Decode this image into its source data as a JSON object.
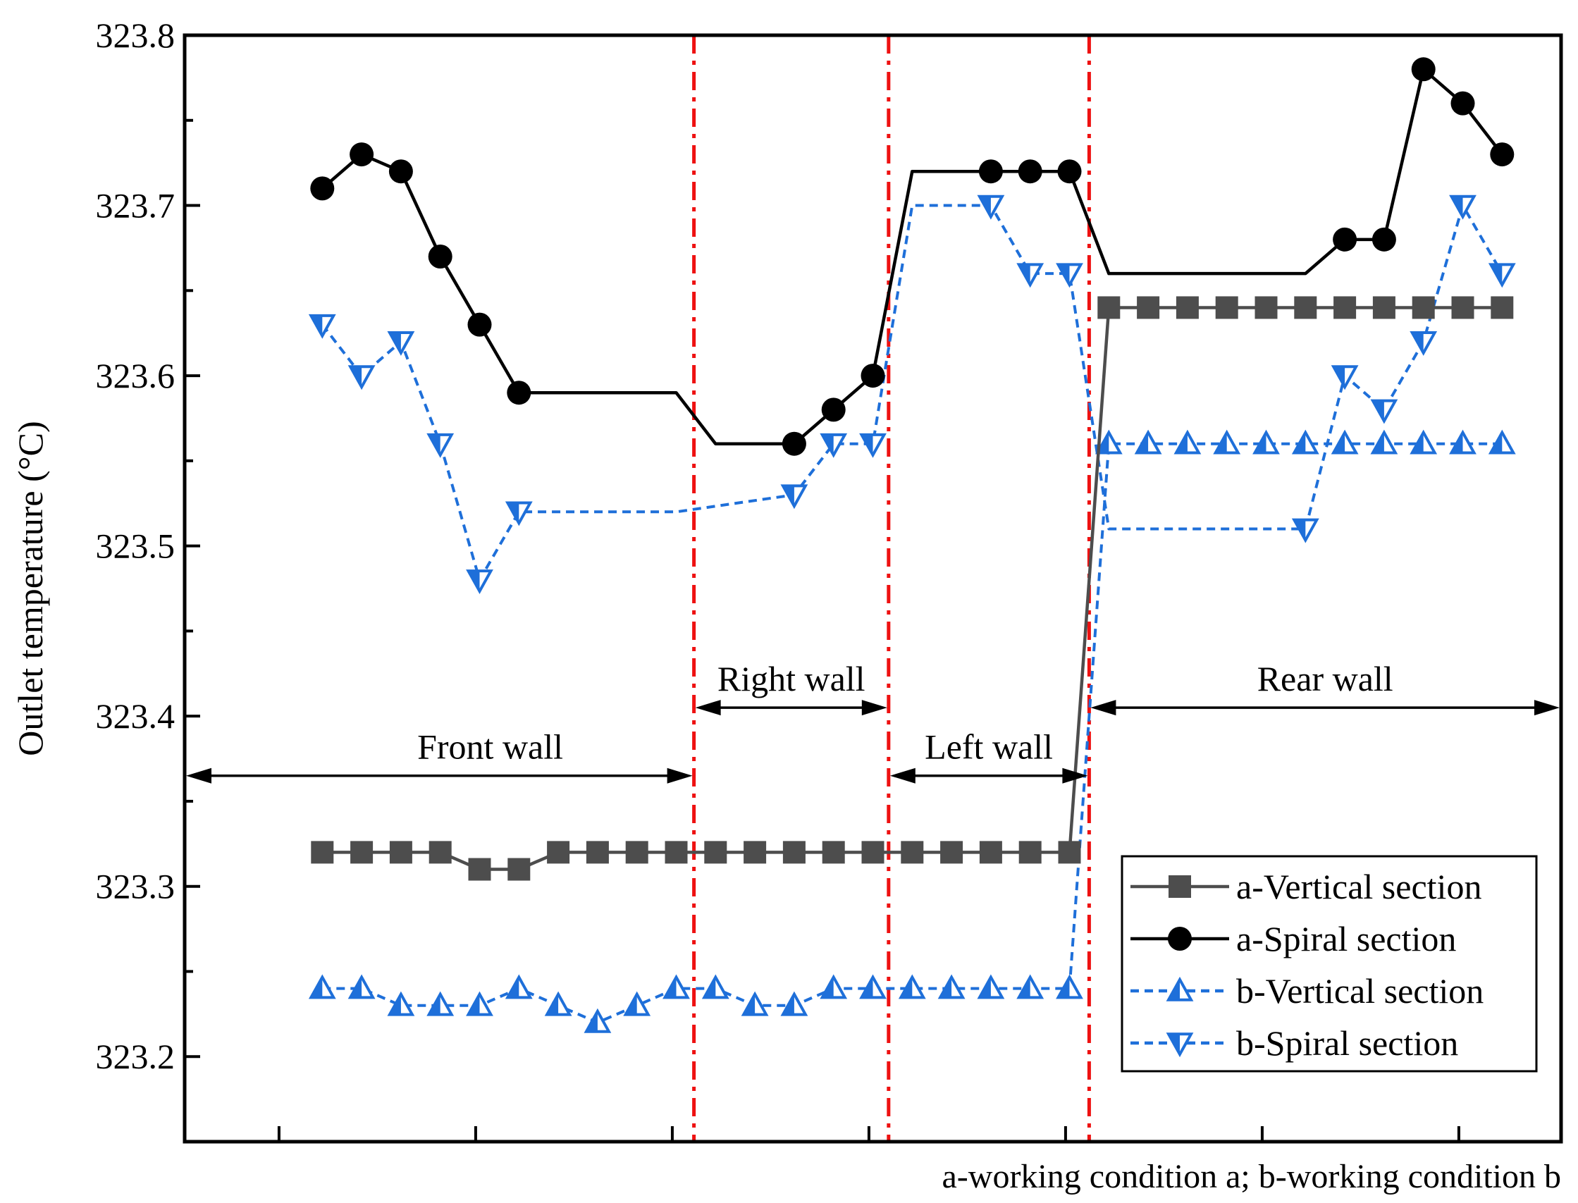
{
  "chart_data": {
    "type": "line",
    "title": "",
    "xlabel": "",
    "ylabel": "Outlet temperature (°C)",
    "ylim": [
      323.15,
      323.8
    ],
    "yticks": [
      "323.2",
      "323.3",
      "323.4",
      "323.5",
      "323.6",
      "323.7",
      "323.8"
    ],
    "xlim": [
      0,
      35
    ],
    "x_major_ticks": [
      2.4,
      7.4,
      12.4,
      17.4,
      22.4,
      27.4,
      32.4
    ],
    "caption": "a-working condition a; b-working condition b",
    "dividers_x": [
      12.95,
      17.9,
      23.0
    ],
    "regions": [
      {
        "label": "Front wall",
        "from": 0,
        "to": 12.95,
        "y": 323.365
      },
      {
        "label": "Right wall",
        "from": 12.95,
        "to": 17.9,
        "y": 323.405
      },
      {
        "label": "Left wall",
        "from": 17.9,
        "to": 23.0,
        "y": 323.365
      },
      {
        "label": "Rear wall",
        "from": 23.0,
        "to": 35,
        "y": 323.405
      }
    ],
    "series": [
      {
        "name": "a-Vertical section",
        "color": "#4d4d4d",
        "line": "solid",
        "marker": "square",
        "x": [
          3.5,
          4.5,
          5.5,
          6.5,
          7.5,
          8.5,
          9.5,
          10.5,
          11.5,
          12.5,
          13.5,
          14.5,
          15.5,
          16.5,
          17.5,
          18.5,
          19.5,
          20.5,
          21.5,
          22.5,
          23.5,
          24.5,
          25.5,
          26.5,
          27.5,
          28.5,
          29.5,
          30.5,
          31.5,
          32.5,
          33.5
        ],
        "values": [
          323.32,
          323.32,
          323.32,
          323.32,
          323.31,
          323.31,
          323.32,
          323.32,
          323.32,
          323.32,
          323.32,
          323.32,
          323.32,
          323.32,
          323.32,
          323.32,
          323.32,
          323.32,
          323.32,
          323.32,
          323.64,
          323.64,
          323.64,
          323.64,
          323.64,
          323.64,
          323.64,
          323.64,
          323.64,
          323.64,
          323.64
        ]
      },
      {
        "name": "a-Spiral section",
        "color": "#000000",
        "line": "solid",
        "marker": "circle",
        "x": [
          3.5,
          4.5,
          5.5,
          6.5,
          7.5,
          8.5,
          12.5,
          13.5,
          15.5,
          16.5,
          17.5,
          18.5,
          20.5,
          21.5,
          22.5,
          23.5,
          28.5,
          29.5,
          30.5,
          31.5,
          32.5,
          33.5
        ],
        "values": [
          323.71,
          323.73,
          323.72,
          323.67,
          323.63,
          323.59,
          323.59,
          323.56,
          323.56,
          323.58,
          323.6,
          323.72,
          323.72,
          323.72,
          323.72,
          323.66,
          323.66,
          323.68,
          323.68,
          323.78,
          323.76,
          323.73
        ],
        "marker_indices": [
          0,
          1,
          2,
          3,
          4,
          5,
          8,
          9,
          10,
          12,
          13,
          14,
          17,
          18,
          19,
          20,
          21
        ]
      },
      {
        "name": "b-Vertical section",
        "color": "#1e6fd9",
        "line": "dashed",
        "marker": "triangle-up",
        "x": [
          3.5,
          4.5,
          5.5,
          6.5,
          7.5,
          8.5,
          9.5,
          10.5,
          11.5,
          12.5,
          13.5,
          14.5,
          15.5,
          16.5,
          17.5,
          18.5,
          19.5,
          20.5,
          21.5,
          22.5,
          23.5,
          24.5,
          25.5,
          26.5,
          27.5,
          28.5,
          29.5,
          30.5,
          31.5,
          32.5,
          33.5
        ],
        "values": [
          323.24,
          323.24,
          323.23,
          323.23,
          323.23,
          323.24,
          323.23,
          323.22,
          323.23,
          323.24,
          323.24,
          323.23,
          323.23,
          323.24,
          323.24,
          323.24,
          323.24,
          323.24,
          323.24,
          323.24,
          323.56,
          323.56,
          323.56,
          323.56,
          323.56,
          323.56,
          323.56,
          323.56,
          323.56,
          323.56,
          323.56
        ]
      },
      {
        "name": "b-Spiral section",
        "color": "#1e6fd9",
        "line": "dashed",
        "marker": "triangle-down",
        "x": [
          3.5,
          4.5,
          5.5,
          6.5,
          7.5,
          8.5,
          12.5,
          15.5,
          16.5,
          17.5,
          18.5,
          20.5,
          21.5,
          22.5,
          23.5,
          28.5,
          29.5,
          30.5,
          31.5,
          32.5,
          33.5
        ],
        "values": [
          323.63,
          323.6,
          323.62,
          323.56,
          323.48,
          323.52,
          323.52,
          323.53,
          323.56,
          323.56,
          323.7,
          323.7,
          323.66,
          323.66,
          323.51,
          323.51,
          323.6,
          323.58,
          323.62,
          323.7,
          323.66
        ],
        "marker_indices": [
          0,
          1,
          2,
          3,
          4,
          5,
          7,
          8,
          9,
          11,
          12,
          13,
          15,
          16,
          17,
          18,
          19,
          20
        ]
      }
    ],
    "legend": {
      "position": "bottom-right",
      "entries": [
        "a-Vertical section",
        "a-Spiral section",
        "b-Vertical section",
        "b-Spiral section"
      ]
    }
  }
}
